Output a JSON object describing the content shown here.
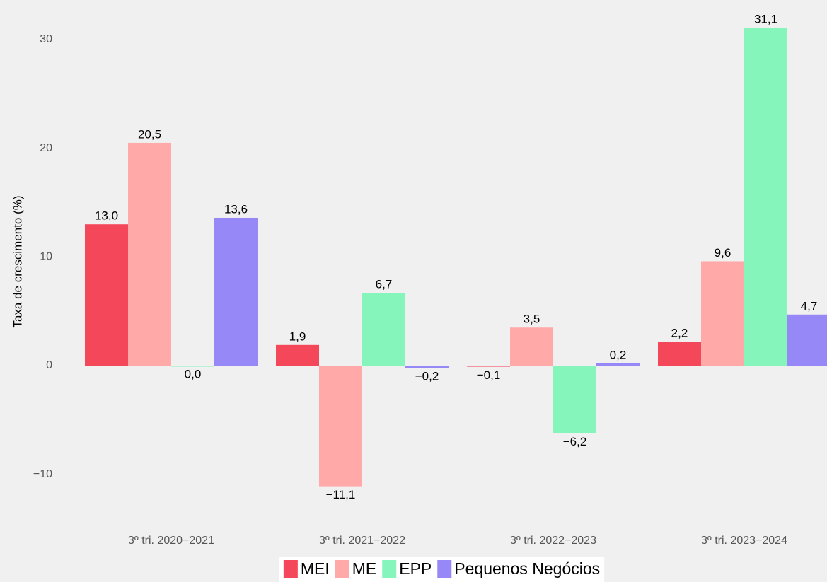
{
  "chart_data": {
    "type": "bar",
    "y_label": "Taxa de crescimento (%)",
    "categories": [
      "3º tri. 2020−2021",
      "3º tri. 2021−2022",
      "3º tri. 2022−2023",
      "3º tri. 2023−2024"
    ],
    "series": [
      {
        "name": "MEI",
        "color": "#f5475a",
        "values": [
          13.0,
          1.9,
          -0.1,
          2.2
        ],
        "value_labels": [
          "13,0",
          "1,9",
          "−0,1",
          "2,2"
        ]
      },
      {
        "name": "ME",
        "color": "#ffaaa9",
        "values": [
          20.5,
          -11.1,
          3.5,
          9.6
        ],
        "value_labels": [
          "20,5",
          "−11,1",
          "3,5",
          "9,6"
        ]
      },
      {
        "name": "EPP",
        "color": "#85f5bb",
        "values": [
          0.0,
          6.7,
          -6.2,
          31.1
        ],
        "value_labels": [
          "0,0",
          "6,7",
          "−6,2",
          "31,1"
        ]
      },
      {
        "name": "Pequenos Negócios",
        "color": "#9688f7",
        "values": [
          13.6,
          -0.2,
          0.2,
          4.7
        ],
        "value_labels": [
          "13,6",
          "−0,2",
          "0,2",
          "4,7"
        ]
      }
    ],
    "ylim": [
      -13.5,
      32.5
    ],
    "yticks": [
      {
        "value": -10,
        "label": "−10"
      },
      0,
      10,
      20,
      30
    ],
    "grid": false,
    "legend": "bottom"
  }
}
